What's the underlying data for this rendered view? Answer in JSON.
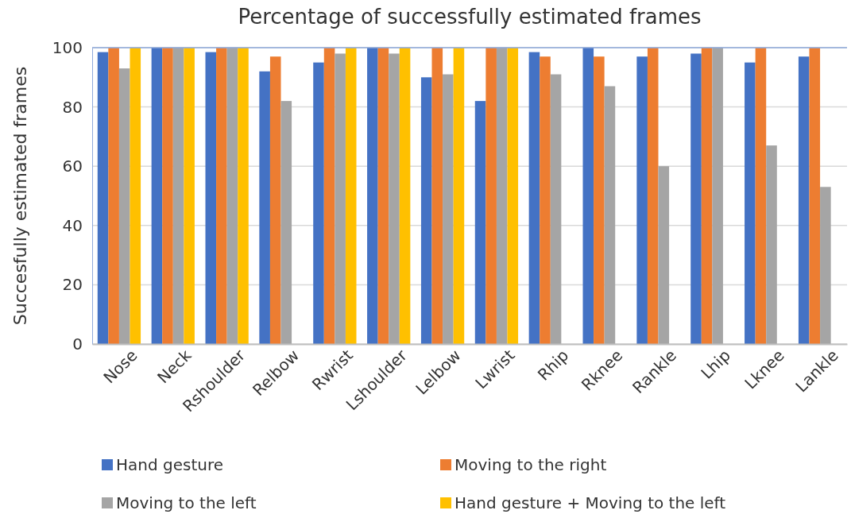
{
  "chart_data": {
    "type": "bar",
    "title": "Percentage of successfully estimated frames",
    "ylabel": "Succesfully estimated frames",
    "categories": [
      "Nose",
      "Neck",
      "Rshoulder",
      "Relbow",
      "Rwrist",
      "Lshoulder",
      "Lelbow",
      "Lwrist",
      "Rhip",
      "Rknee",
      "Rankle",
      "Lhip",
      "Lknee",
      "Lankle"
    ],
    "series": [
      {
        "name": "Hand gesture",
        "color": "#4472c4",
        "values": [
          98.5,
          100,
          98.5,
          92,
          95,
          100,
          90,
          82,
          98.5,
          100,
          97,
          98,
          95,
          97
        ]
      },
      {
        "name": "Moving to the right",
        "color": "#ed7d31",
        "values": [
          100,
          100,
          100,
          97,
          100,
          100,
          100,
          100,
          97,
          97,
          100,
          100,
          100,
          100
        ]
      },
      {
        "name": "Moving to the left",
        "color": "#a5a5a5",
        "values": [
          93,
          100,
          100,
          82,
          98,
          98,
          91,
          100,
          91,
          87,
          60,
          100,
          67,
          53
        ]
      },
      {
        "name": "Hand gesture + Moving to the left",
        "color": "#ffc000",
        "values": [
          100,
          100,
          100,
          null,
          100,
          100,
          100,
          100,
          null,
          null,
          null,
          null,
          null,
          null
        ]
      }
    ],
    "ylim": [
      0,
      100
    ],
    "yticks": [
      0,
      20,
      40,
      60,
      80,
      100
    ],
    "grid": "y",
    "legend": "bottom"
  }
}
